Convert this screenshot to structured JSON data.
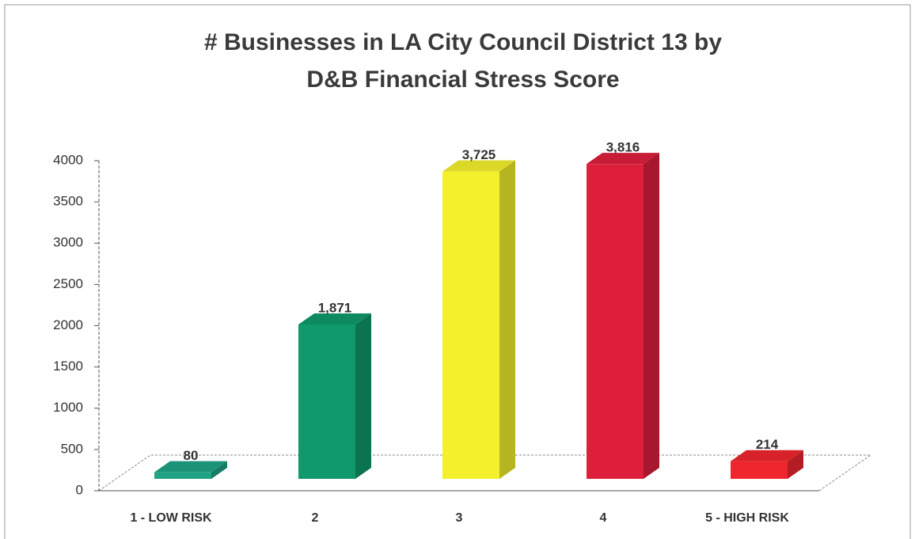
{
  "chart_data": {
    "type": "bar3d",
    "title": [
      "# Businesses in LA City Council District 13 by",
      "D&B Financial Stress Score"
    ],
    "categories": [
      "1 - LOW RISK",
      "2",
      "3",
      "4",
      "5 - HIGH RISK"
    ],
    "values": [
      80,
      1871,
      3725,
      3816,
      214
    ],
    "value_labels": [
      "80",
      "1,871",
      "3,725",
      "3,816",
      "214"
    ],
    "colors": [
      "#1fa384",
      "#10996c",
      "#f4f02c",
      "#de1f3c",
      "#f0262e"
    ],
    "ylim": [
      0,
      4000
    ],
    "yticks": [
      0,
      500,
      1000,
      1500,
      2000,
      2500,
      3000,
      3500,
      4000
    ]
  }
}
